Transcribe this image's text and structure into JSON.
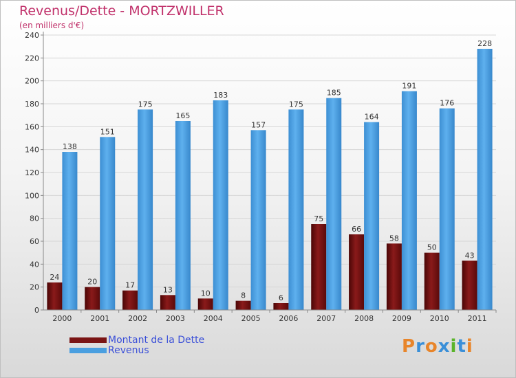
{
  "chart_data": {
    "type": "bar",
    "title": "Revenus/Dette - MORTZWILLER",
    "subtitle": "(en milliers d'€)",
    "categories": [
      "2000",
      "2001",
      "2002",
      "2003",
      "2004",
      "2005",
      "2006",
      "2007",
      "2008",
      "2009",
      "2010",
      "2011"
    ],
    "series": [
      {
        "name": "Montant de la Dette",
        "color": "#7a1414",
        "values": [
          24,
          20,
          17,
          13,
          10,
          8,
          6,
          75,
          66,
          58,
          50,
          43
        ]
      },
      {
        "name": "Revenus",
        "color": "#4a9fe0",
        "values": [
          138,
          151,
          175,
          165,
          183,
          157,
          175,
          185,
          164,
          191,
          176,
          228
        ]
      }
    ],
    "y_ticks": [
      0,
      20,
      40,
      60,
      80,
      100,
      120,
      140,
      160,
      180,
      200,
      220,
      240
    ],
    "ylim": [
      0,
      240
    ],
    "xlabel": "",
    "ylabel": ""
  },
  "logo": {
    "text": "Proxiti"
  }
}
